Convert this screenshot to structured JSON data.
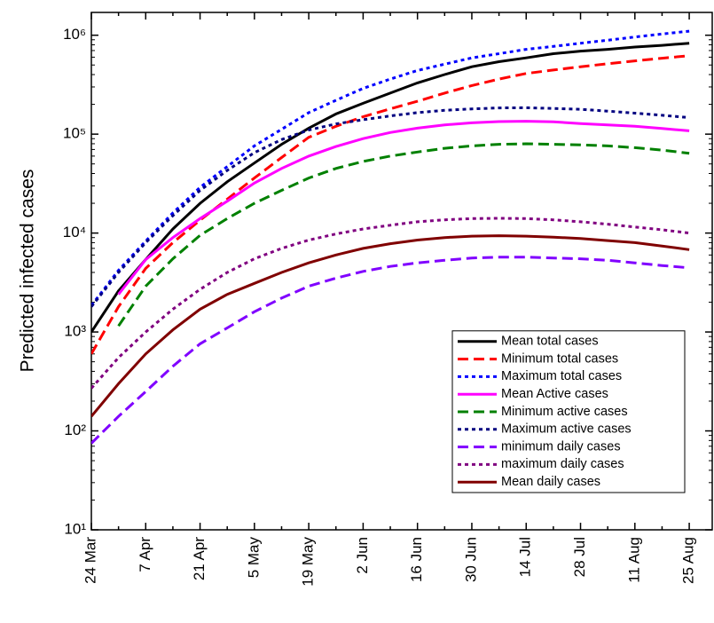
{
  "chart_data": {
    "type": "line",
    "y_label": "Predicted infected cases",
    "log_scale_y": true,
    "legend_position": "lower right",
    "categories": [
      "24 Mar",
      null,
      "7 Apr",
      null,
      "21 Apr",
      null,
      "5 May",
      null,
      "19 May",
      null,
      "2 Jun",
      null,
      "16 Jun",
      null,
      "30 Jun",
      null,
      "14 Jul",
      null,
      "28 Jul",
      null,
      "11 Aug",
      null,
      "25 Aug"
    ],
    "ylim": [
      10,
      1700000
    ],
    "yticks": [
      {
        "value": 10,
        "label": "10¹"
      },
      {
        "value": 100,
        "label": "10²"
      },
      {
        "value": 1000,
        "label": "10³"
      },
      {
        "value": 10000,
        "label": "10⁴"
      },
      {
        "value": 100000,
        "label": "10⁵"
      },
      {
        "value": 1000000,
        "label": "10⁶"
      }
    ],
    "series": [
      {
        "name": "Mean total cases",
        "color": "#000000",
        "linestyle": "solid",
        "values": [
          1000,
          2600,
          5400,
          11000,
          20000,
          33000,
          51000,
          79000,
          115000,
          160000,
          205000,
          260000,
          330000,
          400000,
          480000,
          540000,
          590000,
          650000,
          690000,
          720000,
          760000,
          790000,
          830000
        ]
      },
      {
        "name": "Minimum total cases",
        "color": "#ff0000",
        "linestyle": "dashed",
        "values": [
          600,
          1800,
          4400,
          8000,
          13500,
          22000,
          36000,
          58000,
          93000,
          120000,
          150000,
          180000,
          215000,
          260000,
          310000,
          360000,
          410000,
          445000,
          480000,
          515000,
          550000,
          585000,
          620000
        ]
      },
      {
        "name": "Maximum total cases",
        "color": "#0000ff",
        "linestyle": "dotted",
        "values": [
          1850,
          4200,
          8300,
          16000,
          29000,
          47000,
          76000,
          112000,
          165000,
          220000,
          290000,
          360000,
          440000,
          510000,
          590000,
          650000,
          720000,
          770000,
          830000,
          890000,
          960000,
          1030000,
          1100000
        ]
      },
      {
        "name": "Mean Active cases",
        "color": "#ff00ff",
        "linestyle": "solid",
        "values": [
          null,
          2400,
          5400,
          9000,
          14000,
          21000,
          32000,
          45000,
          60000,
          75000,
          90000,
          104000,
          115000,
          124000,
          130000,
          134000,
          135000,
          133000,
          128000,
          124000,
          120000,
          114000,
          108000
        ]
      },
      {
        "name": "Minimum active cases",
        "color": "#008000",
        "linestyle": "dashed",
        "values": [
          null,
          1150,
          2900,
          5500,
          9500,
          14000,
          20000,
          27000,
          36000,
          45000,
          53000,
          60000,
          66000,
          72000,
          76000,
          79000,
          80000,
          79000,
          78000,
          76000,
          73000,
          69000,
          64000
        ]
      },
      {
        "name": "Maximum active cases",
        "color": "#000080",
        "linestyle": "dotted",
        "values": [
          1800,
          4000,
          8000,
          15000,
          27000,
          43000,
          65000,
          88000,
          110000,
          127000,
          140000,
          153000,
          165000,
          174000,
          180000,
          184000,
          185000,
          182000,
          178000,
          171000,
          163000,
          155000,
          147000
        ]
      },
      {
        "name": "minimum daily cases",
        "color": "#8000ff",
        "linestyle": "dashed",
        "values": [
          75,
          140,
          250,
          450,
          760,
          1100,
          1600,
          2200,
          2900,
          3500,
          4100,
          4600,
          5000,
          5300,
          5600,
          5700,
          5700,
          5600,
          5500,
          5300,
          5000,
          4700,
          4450
        ]
      },
      {
        "name": "maximum daily cases",
        "color": "#800080",
        "linestyle": "dotted",
        "values": [
          270,
          550,
          1000,
          1700,
          2700,
          4000,
          5500,
          7000,
          8500,
          9800,
          11000,
          12000,
          13000,
          13600,
          14000,
          14100,
          14000,
          13600,
          13000,
          12300,
          11500,
          10800,
          10000
        ]
      },
      {
        "name": "Mean daily cases",
        "color": "#800000",
        "linestyle": "solid",
        "values": [
          140,
          300,
          600,
          1050,
          1700,
          2400,
          3100,
          4000,
          5000,
          6000,
          7000,
          7800,
          8500,
          9000,
          9300,
          9400,
          9300,
          9100,
          8800,
          8400,
          8000,
          7400,
          6800
        ]
      }
    ]
  }
}
